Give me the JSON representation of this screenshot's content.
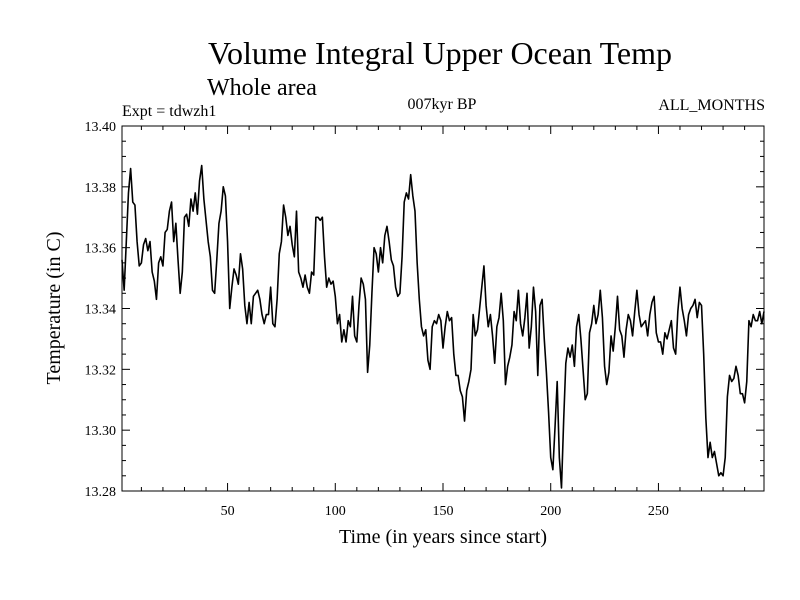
{
  "chart_data": {
    "type": "line",
    "title": "Volume Integral Upper Ocean Temp",
    "subtitle": "Whole area",
    "experiment_label": "Expt = tdwzh1",
    "period_label": "007kyr BP",
    "months_label": "ALL_MONTHS",
    "xlabel": "Time (in years since start)",
    "ylabel": "Temperature (in C)",
    "xlim": [
      1,
      299
    ],
    "ylim": [
      13.28,
      13.4
    ],
    "x_ticks": [
      {
        "value": 50,
        "label": "50"
      },
      {
        "value": 100,
        "label": "100"
      },
      {
        "value": 150,
        "label": "150"
      },
      {
        "value": 200,
        "label": "200"
      },
      {
        "value": 250,
        "label": "250"
      }
    ],
    "y_ticks": [
      {
        "value": 13.28,
        "label": "13.28"
      },
      {
        "value": 13.3,
        "label": "13.30"
      },
      {
        "value": 13.32,
        "label": "13.32"
      },
      {
        "value": 13.34,
        "label": "13.34"
      },
      {
        "value": 13.36,
        "label": "13.36"
      },
      {
        "value": 13.38,
        "label": "13.38"
      },
      {
        "value": 13.4,
        "label": "13.40"
      }
    ],
    "series": [
      {
        "name": "Temperature",
        "points": [
          [
            1,
            13.356
          ],
          [
            2,
            13.346
          ],
          [
            3,
            13.362
          ],
          [
            4,
            13.378
          ],
          [
            5,
            13.386
          ],
          [
            6,
            13.375
          ],
          [
            7,
            13.374
          ],
          [
            8,
            13.362
          ],
          [
            9,
            13.354
          ],
          [
            10,
            13.355
          ],
          [
            11,
            13.361
          ],
          [
            12,
            13.363
          ],
          [
            13,
            13.359
          ],
          [
            14,
            13.362
          ],
          [
            15,
            13.352
          ],
          [
            16,
            13.349
          ],
          [
            17,
            13.343
          ],
          [
            18,
            13.355
          ],
          [
            19,
            13.357
          ],
          [
            20,
            13.354
          ],
          [
            21,
            13.365
          ],
          [
            22,
            13.366
          ],
          [
            23,
            13.372
          ],
          [
            24,
            13.375
          ],
          [
            25,
            13.362
          ],
          [
            26,
            13.368
          ],
          [
            27,
            13.356
          ],
          [
            28,
            13.345
          ],
          [
            29,
            13.352
          ],
          [
            30,
            13.37
          ],
          [
            31,
            13.371
          ],
          [
            32,
            13.367
          ],
          [
            33,
            13.376
          ],
          [
            34,
            13.372
          ],
          [
            35,
            13.378
          ],
          [
            36,
            13.371
          ],
          [
            37,
            13.382
          ],
          [
            38,
            13.387
          ],
          [
            39,
            13.376
          ],
          [
            40,
            13.369
          ],
          [
            41,
            13.362
          ],
          [
            42,
            13.357
          ],
          [
            43,
            13.346
          ],
          [
            44,
            13.345
          ],
          [
            45,
            13.356
          ],
          [
            46,
            13.368
          ],
          [
            47,
            13.372
          ],
          [
            48,
            13.38
          ],
          [
            49,
            13.377
          ],
          [
            50,
            13.362
          ],
          [
            51,
            13.34
          ],
          [
            52,
            13.347
          ],
          [
            53,
            13.353
          ],
          [
            54,
            13.351
          ],
          [
            55,
            13.348
          ],
          [
            56,
            13.358
          ],
          [
            57,
            13.353
          ],
          [
            58,
            13.341
          ],
          [
            59,
            13.335
          ],
          [
            60,
            13.342
          ],
          [
            61,
            13.335
          ],
          [
            62,
            13.344
          ],
          [
            63,
            13.345
          ],
          [
            64,
            13.346
          ],
          [
            65,
            13.343
          ],
          [
            66,
            13.338
          ],
          [
            67,
            13.335
          ],
          [
            68,
            13.338
          ],
          [
            69,
            13.338
          ],
          [
            70,
            13.347
          ],
          [
            71,
            13.335
          ],
          [
            72,
            13.334
          ],
          [
            73,
            13.343
          ],
          [
            74,
            13.358
          ],
          [
            75,
            13.362
          ],
          [
            76,
            13.374
          ],
          [
            77,
            13.37
          ],
          [
            78,
            13.364
          ],
          [
            79,
            13.367
          ],
          [
            80,
            13.361
          ],
          [
            81,
            13.357
          ],
          [
            82,
            13.372
          ],
          [
            83,
            13.352
          ],
          [
            84,
            13.35
          ],
          [
            85,
            13.347
          ],
          [
            86,
            13.351
          ],
          [
            87,
            13.347
          ],
          [
            88,
            13.345
          ],
          [
            89,
            13.352
          ],
          [
            90,
            13.351
          ],
          [
            91,
            13.37
          ],
          [
            92,
            13.37
          ],
          [
            93,
            13.369
          ],
          [
            94,
            13.37
          ],
          [
            95,
            13.357
          ],
          [
            96,
            13.347
          ],
          [
            97,
            13.35
          ],
          [
            98,
            13.348
          ],
          [
            99,
            13.349
          ],
          [
            100,
            13.344
          ],
          [
            101,
            13.335
          ],
          [
            102,
            13.338
          ],
          [
            103,
            13.329
          ],
          [
            104,
            13.333
          ],
          [
            105,
            13.329
          ],
          [
            106,
            13.336
          ],
          [
            107,
            13.334
          ],
          [
            108,
            13.344
          ],
          [
            109,
            13.331
          ],
          [
            110,
            13.329
          ],
          [
            111,
            13.341
          ],
          [
            112,
            13.35
          ],
          [
            113,
            13.348
          ],
          [
            114,
            13.343
          ],
          [
            115,
            13.319
          ],
          [
            116,
            13.328
          ],
          [
            117,
            13.345
          ],
          [
            118,
            13.36
          ],
          [
            119,
            13.358
          ],
          [
            120,
            13.352
          ],
          [
            121,
            13.36
          ],
          [
            122,
            13.355
          ],
          [
            123,
            13.364
          ],
          [
            124,
            13.367
          ],
          [
            125,
            13.362
          ],
          [
            126,
            13.356
          ],
          [
            127,
            13.354
          ],
          [
            128,
            13.347
          ],
          [
            129,
            13.344
          ],
          [
            130,
            13.345
          ],
          [
            131,
            13.357
          ],
          [
            132,
            13.375
          ],
          [
            133,
            13.378
          ],
          [
            134,
            13.376
          ],
          [
            135,
            13.384
          ],
          [
            136,
            13.377
          ],
          [
            137,
            13.372
          ],
          [
            138,
            13.355
          ],
          [
            139,
            13.343
          ],
          [
            140,
            13.334
          ],
          [
            141,
            13.331
          ],
          [
            142,
            13.333
          ],
          [
            143,
            13.323
          ],
          [
            144,
            13.32
          ],
          [
            145,
            13.334
          ],
          [
            146,
            13.336
          ],
          [
            147,
            13.335
          ],
          [
            148,
            13.338
          ],
          [
            149,
            13.336
          ],
          [
            150,
            13.327
          ],
          [
            151,
            13.334
          ],
          [
            152,
            13.339
          ],
          [
            153,
            13.336
          ],
          [
            154,
            13.337
          ],
          [
            155,
            13.325
          ],
          [
            156,
            13.318
          ],
          [
            157,
            13.318
          ],
          [
            158,
            13.313
          ],
          [
            159,
            13.311
          ],
          [
            160,
            13.303
          ],
          [
            161,
            13.313
          ],
          [
            162,
            13.316
          ],
          [
            163,
            13.32
          ],
          [
            164,
            13.338
          ],
          [
            165,
            13.331
          ],
          [
            166,
            13.333
          ],
          [
            167,
            13.34
          ],
          [
            168,
            13.347
          ],
          [
            169,
            13.354
          ],
          [
            170,
            13.341
          ],
          [
            171,
            13.334
          ],
          [
            172,
            13.338
          ],
          [
            173,
            13.331
          ],
          [
            174,
            13.322
          ],
          [
            175,
            13.334
          ],
          [
            176,
            13.337
          ],
          [
            177,
            13.345
          ],
          [
            178,
            13.336
          ],
          [
            179,
            13.315
          ],
          [
            180,
            13.321
          ],
          [
            181,
            13.324
          ],
          [
            182,
            13.328
          ],
          [
            183,
            13.339
          ],
          [
            184,
            13.336
          ],
          [
            185,
            13.346
          ],
          [
            186,
            13.335
          ],
          [
            187,
            13.331
          ],
          [
            188,
            13.337
          ],
          [
            189,
            13.345
          ],
          [
            190,
            13.327
          ],
          [
            191,
            13.334
          ],
          [
            192,
            13.347
          ],
          [
            193,
            13.339
          ],
          [
            194,
            13.318
          ],
          [
            195,
            13.341
          ],
          [
            196,
            13.343
          ],
          [
            197,
            13.33
          ],
          [
            198,
            13.319
          ],
          [
            199,
            13.306
          ],
          [
            200,
            13.291
          ],
          [
            201,
            13.287
          ],
          [
            202,
            13.301
          ],
          [
            203,
            13.316
          ],
          [
            204,
            13.291
          ],
          [
            205,
            13.281
          ],
          [
            206,
            13.303
          ],
          [
            207,
            13.322
          ],
          [
            208,
            13.327
          ],
          [
            209,
            13.324
          ],
          [
            210,
            13.328
          ],
          [
            211,
            13.321
          ],
          [
            212,
            13.334
          ],
          [
            213,
            13.338
          ],
          [
            214,
            13.33
          ],
          [
            215,
            13.32
          ],
          [
            216,
            13.31
          ],
          [
            217,
            13.312
          ],
          [
            218,
            13.332
          ],
          [
            219,
            13.335
          ],
          [
            220,
            13.341
          ],
          [
            221,
            13.335
          ],
          [
            222,
            13.338
          ],
          [
            223,
            13.346
          ],
          [
            224,
            13.337
          ],
          [
            225,
            13.321
          ],
          [
            226,
            13.315
          ],
          [
            227,
            13.319
          ],
          [
            228,
            13.331
          ],
          [
            229,
            13.326
          ],
          [
            230,
            13.334
          ],
          [
            231,
            13.344
          ],
          [
            232,
            13.333
          ],
          [
            233,
            13.331
          ],
          [
            234,
            13.324
          ],
          [
            235,
            13.333
          ],
          [
            236,
            13.338
          ],
          [
            237,
            13.336
          ],
          [
            238,
            13.331
          ],
          [
            239,
            13.339
          ],
          [
            240,
            13.346
          ],
          [
            241,
            13.338
          ],
          [
            242,
            13.334
          ],
          [
            243,
            13.335
          ],
          [
            244,
            13.336
          ],
          [
            245,
            13.331
          ],
          [
            246,
            13.338
          ],
          [
            247,
            13.342
          ],
          [
            248,
            13.344
          ],
          [
            249,
            13.332
          ],
          [
            250,
            13.329
          ],
          [
            251,
            13.329
          ],
          [
            252,
            13.325
          ],
          [
            253,
            13.332
          ],
          [
            254,
            13.33
          ],
          [
            255,
            13.333
          ],
          [
            256,
            13.336
          ],
          [
            257,
            13.327
          ],
          [
            258,
            13.325
          ],
          [
            259,
            13.339
          ],
          [
            260,
            13.347
          ],
          [
            261,
            13.34
          ],
          [
            262,
            13.336
          ],
          [
            263,
            13.331
          ],
          [
            264,
            13.338
          ],
          [
            265,
            13.34
          ],
          [
            266,
            13.341
          ],
          [
            267,
            13.343
          ],
          [
            268,
            13.337
          ],
          [
            269,
            13.342
          ],
          [
            270,
            13.341
          ],
          [
            271,
            13.325
          ],
          [
            272,
            13.304
          ],
          [
            273,
            13.291
          ],
          [
            274,
            13.296
          ],
          [
            275,
            13.291
          ],
          [
            276,
            13.293
          ],
          [
            277,
            13.289
          ],
          [
            278,
            13.285
          ],
          [
            279,
            13.286
          ],
          [
            280,
            13.285
          ],
          [
            281,
            13.291
          ],
          [
            282,
            13.311
          ],
          [
            283,
            13.318
          ],
          [
            284,
            13.316
          ],
          [
            285,
            13.317
          ],
          [
            286,
            13.321
          ],
          [
            287,
            13.318
          ],
          [
            288,
            13.312
          ],
          [
            289,
            13.312
          ],
          [
            290,
            13.309
          ],
          [
            291,
            13.316
          ],
          [
            292,
            13.336
          ],
          [
            293,
            13.334
          ],
          [
            294,
            13.338
          ],
          [
            295,
            13.336
          ],
          [
            296,
            13.336
          ],
          [
            297,
            13.339
          ],
          [
            298,
            13.335
          ],
          [
            299,
            13.339
          ]
        ]
      }
    ]
  }
}
